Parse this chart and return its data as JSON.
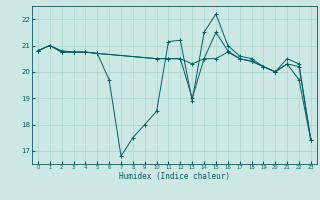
{
  "xlabel": "Humidex (Indice chaleur)",
  "background_color": "#cce8e4",
  "grid_color": "#b0d8d2",
  "line_color": "#006060",
  "xlim": [
    -0.5,
    23.5
  ],
  "ylim": [
    16.5,
    22.5
  ],
  "yticks": [
    17,
    18,
    19,
    20,
    21,
    22
  ],
  "xticks": [
    0,
    1,
    2,
    3,
    4,
    5,
    6,
    7,
    8,
    9,
    10,
    11,
    12,
    13,
    14,
    15,
    16,
    17,
    18,
    19,
    20,
    21,
    22,
    23
  ],
  "line1_x": [
    0,
    1,
    2,
    3,
    4,
    5,
    6,
    7,
    8,
    9,
    10,
    11,
    12,
    13,
    14,
    15,
    16,
    17,
    18,
    19,
    20,
    21,
    22,
    23
  ],
  "line1_y": [
    20.8,
    21.0,
    20.8,
    20.75,
    20.75,
    20.7,
    19.7,
    16.8,
    17.5,
    18.0,
    18.5,
    21.15,
    21.2,
    18.9,
    21.5,
    22.2,
    21.0,
    20.6,
    20.5,
    20.2,
    20.0,
    20.5,
    20.3,
    17.4
  ],
  "line2_x": [
    0,
    1,
    2,
    3,
    4,
    5,
    10,
    11,
    12,
    13,
    14,
    15,
    16,
    17,
    18,
    19,
    20,
    21,
    22,
    23
  ],
  "line2_y": [
    20.8,
    21.0,
    20.75,
    20.75,
    20.75,
    20.7,
    20.5,
    20.5,
    20.5,
    19.0,
    20.5,
    21.5,
    20.8,
    20.5,
    20.4,
    20.2,
    20.0,
    20.3,
    19.7,
    17.4
  ],
  "line3_x": [
    0,
    1,
    2,
    3,
    4,
    5,
    10,
    11,
    12,
    13,
    14,
    15,
    16,
    17,
    18,
    19,
    20,
    21,
    22,
    23
  ],
  "line3_y": [
    20.8,
    21.0,
    20.75,
    20.75,
    20.75,
    20.7,
    20.5,
    20.5,
    20.5,
    20.3,
    20.5,
    20.5,
    20.75,
    20.5,
    20.4,
    20.2,
    20.0,
    20.3,
    20.2,
    17.4
  ]
}
